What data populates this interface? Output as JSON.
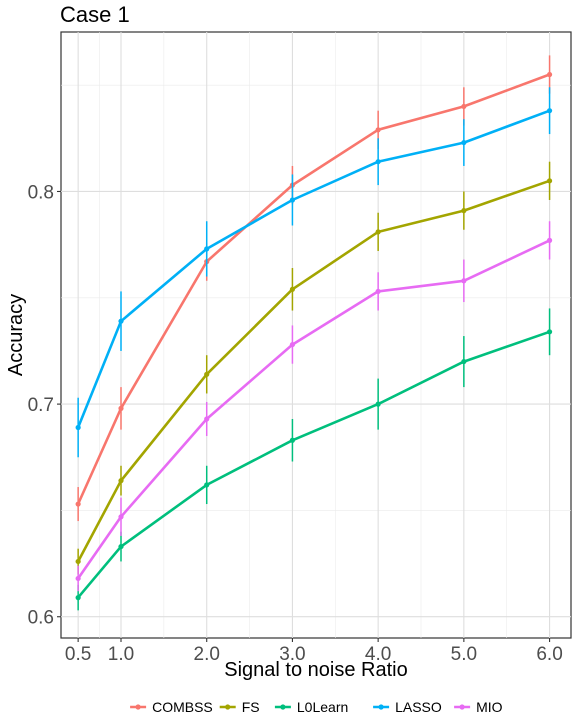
{
  "chart_data": {
    "type": "line",
    "title": "Case 1",
    "xlabel": "Signal to noise Ratio",
    "ylabel": "Accuracy",
    "x": [
      0.5,
      1.0,
      2.0,
      3.0,
      4.0,
      5.0,
      6.0
    ],
    "x_tick_labels": [
      "0.5",
      "1.0",
      "2.0",
      "3.0",
      "4.0",
      "5.0",
      "6.0"
    ],
    "y_ticks": [
      0.6,
      0.7,
      0.8
    ],
    "y_tick_labels": [
      "0.6",
      "0.7",
      "0.8"
    ],
    "xlim": [
      0.3,
      6.25
    ],
    "ylim": [
      0.59,
      0.875
    ],
    "grid": true,
    "legend_position": "bottom",
    "series": [
      {
        "name": "COMBSS",
        "color": "#F8766D",
        "values": [
          0.653,
          0.698,
          0.767,
          0.803,
          0.829,
          0.84,
          0.855
        ],
        "err": [
          0.008,
          0.01,
          0.009,
          0.009,
          0.009,
          0.009,
          0.009
        ]
      },
      {
        "name": "FS",
        "color": "#A3A500",
        "values": [
          0.626,
          0.664,
          0.714,
          0.754,
          0.781,
          0.791,
          0.805
        ],
        "err": [
          0.006,
          0.007,
          0.009,
          0.01,
          0.009,
          0.009,
          0.009
        ]
      },
      {
        "name": "L0Learn",
        "color": "#00BF7D",
        "values": [
          0.609,
          0.633,
          0.662,
          0.683,
          0.7,
          0.72,
          0.734
        ],
        "err": [
          0.006,
          0.007,
          0.009,
          0.01,
          0.012,
          0.012,
          0.011
        ]
      },
      {
        "name": "LASSO",
        "color": "#00B0F6",
        "values": [
          0.689,
          0.739,
          0.773,
          0.796,
          0.814,
          0.823,
          0.838
        ],
        "err": [
          0.014,
          0.014,
          0.013,
          0.012,
          0.011,
          0.011,
          0.011
        ]
      },
      {
        "name": "MIO",
        "color": "#E76BF3",
        "values": [
          0.618,
          0.647,
          0.693,
          0.728,
          0.753,
          0.758,
          0.777
        ],
        "err": [
          0.006,
          0.009,
          0.008,
          0.009,
          0.009,
          0.01,
          0.009
        ]
      }
    ]
  }
}
